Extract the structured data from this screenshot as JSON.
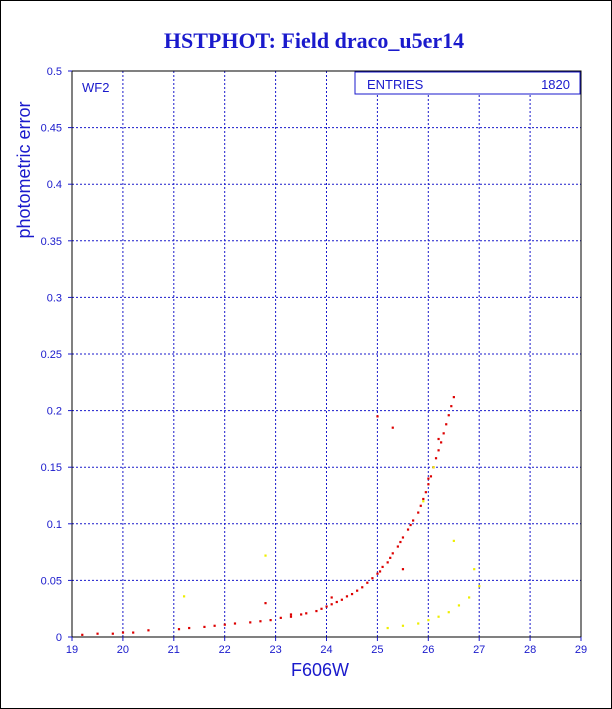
{
  "colors": {
    "title": "#1a1acc",
    "axis": "#1a1acc",
    "grid": "#1a1acc",
    "text": "#1a1acc",
    "series_main": "#dd0000",
    "series_secondary": "#eeee00"
  },
  "stats_box": {
    "label": "ENTRIES",
    "value": "1820"
  },
  "chart_data": {
    "type": "scatter",
    "title": "HSTPHOT: Field draco_u5er14",
    "panel_label": "WF2",
    "xlabel": "F606W",
    "ylabel": "photometric error",
    "xlim": [
      19,
      29
    ],
    "ylim": [
      0,
      0.5
    ],
    "x_ticks": [
      19,
      20,
      21,
      22,
      23,
      24,
      25,
      26,
      27,
      28,
      29
    ],
    "y_ticks": [
      0,
      0.05,
      0.1,
      0.15,
      0.2,
      0.25,
      0.3,
      0.35,
      0.4,
      0.45,
      0.5
    ],
    "grid": true,
    "series": [
      {
        "color": "#dd0000",
        "x": [
          19.2,
          19.5,
          19.8,
          20.0,
          20.2,
          20.5,
          21.1,
          21.3,
          21.6,
          21.8,
          22.0,
          22.2,
          22.5,
          22.7,
          22.9,
          23.1,
          23.3,
          23.5,
          23.6,
          23.8,
          23.9,
          24.0,
          24.1,
          24.2,
          24.3,
          24.4,
          24.5,
          24.6,
          24.7,
          24.8,
          24.9,
          25.0,
          25.05,
          25.1,
          25.2,
          25.25,
          25.3,
          25.4,
          25.45,
          25.5,
          25.6,
          25.65,
          25.7,
          25.8,
          25.85,
          25.9,
          25.95,
          26.0,
          26.05,
          26.1,
          26.15,
          26.2,
          26.25,
          26.3,
          26.35,
          26.4,
          26.45,
          26.5,
          25.0,
          25.3,
          22.8,
          23.3,
          24.1,
          25.5,
          26.0,
          26.2
        ],
        "y": [
          0.002,
          0.003,
          0.003,
          0.004,
          0.004,
          0.006,
          0.007,
          0.008,
          0.009,
          0.01,
          0.011,
          0.012,
          0.013,
          0.014,
          0.015,
          0.017,
          0.018,
          0.02,
          0.021,
          0.023,
          0.025,
          0.027,
          0.029,
          0.031,
          0.033,
          0.036,
          0.038,
          0.041,
          0.044,
          0.048,
          0.052,
          0.056,
          0.058,
          0.062,
          0.066,
          0.07,
          0.074,
          0.08,
          0.084,
          0.088,
          0.095,
          0.099,
          0.103,
          0.11,
          0.116,
          0.122,
          0.128,
          0.135,
          0.142,
          0.15,
          0.158,
          0.165,
          0.172,
          0.18,
          0.188,
          0.196,
          0.204,
          0.212,
          0.195,
          0.185,
          0.03,
          0.02,
          0.035,
          0.06,
          0.14,
          0.175
        ]
      },
      {
        "color": "#eeee00",
        "x": [
          21.2,
          22.8,
          25.2,
          25.5,
          25.8,
          26.0,
          26.2,
          26.4,
          26.6,
          26.8,
          27.0,
          26.9,
          26.5,
          25.9,
          26.1
        ],
        "y": [
          0.036,
          0.072,
          0.008,
          0.01,
          0.012,
          0.015,
          0.018,
          0.022,
          0.028,
          0.035,
          0.045,
          0.06,
          0.085,
          0.12,
          0.15
        ]
      }
    ]
  }
}
